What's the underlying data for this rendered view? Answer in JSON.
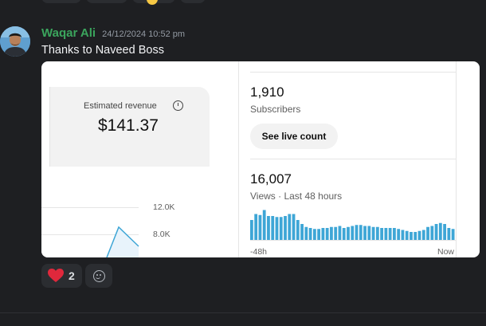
{
  "message": {
    "username": "Waqar Ali",
    "timestamp": "24/12/2024 10:52 pm",
    "text": "Thanks to Naveed Boss"
  },
  "embed": {
    "revenue": {
      "label": "Estimated revenue",
      "value": "$141.37"
    },
    "revenue_chart": {
      "ticks": [
        "12.0K",
        "8.0K"
      ]
    },
    "subscribers": {
      "value": "1,910",
      "label": "Subscribers",
      "button": "See live count"
    },
    "views": {
      "value": "16,007",
      "label": "Views · Last 48 hours",
      "axis_start": "-48h",
      "axis_end": "Now"
    }
  },
  "chart_data": {
    "type": "bar",
    "title": "",
    "xlabel": "",
    "ylabel": "",
    "x_tick_labels": [
      "-48h",
      "Now"
    ],
    "values": [
      20,
      26,
      25,
      30,
      24,
      24,
      23,
      23,
      24,
      26,
      26,
      20,
      16,
      13,
      12,
      11,
      11,
      12,
      12,
      13,
      13,
      14,
      12,
      13,
      14,
      15,
      15,
      14,
      14,
      13,
      13,
      12,
      12,
      12,
      12,
      11,
      10,
      9,
      8,
      8,
      9,
      10,
      13,
      14,
      16,
      17,
      16,
      12,
      11
    ]
  },
  "reactions": [
    {
      "emoji": "heart",
      "count": "2"
    }
  ],
  "colors": {
    "username": "#3ba55d",
    "background": "#1e1f22",
    "bar": "#3ea6d6"
  }
}
